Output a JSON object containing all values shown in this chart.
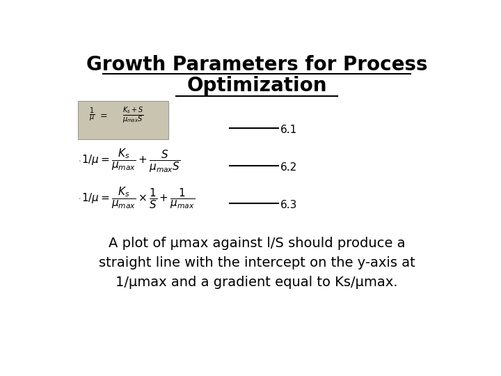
{
  "title_line1": "Growth Parameters for Process",
  "title_line2": "Optimization",
  "title_fontsize": 20,
  "title_fontweight": "bold",
  "bg_color": "#ffffff",
  "eq_box_facecolor": "#c8c4b0",
  "eq_box_edgecolor": "#999990",
  "eq1_label": "6.1",
  "eq2_label": "6.2",
  "eq3_label": "6.3",
  "body_text": "A plot of μmax against l/S should produce a\nstraight line with the intercept on the y-axis at\n1/μmax and a gradient equal to Ks/μmax.",
  "body_fontsize": 14,
  "eq_fontsize": 11,
  "label_fontsize": 11
}
